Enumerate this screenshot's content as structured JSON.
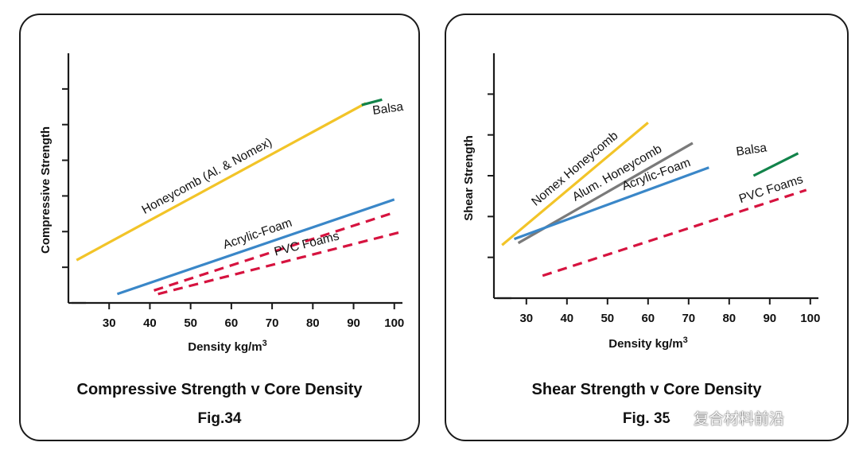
{
  "colors": {
    "honeycomb": "#f2c428",
    "acrylic": "#3a87c8",
    "pvc": "#d6133f",
    "balsa": "#12834a",
    "aluminum": "#7a7a7a",
    "axis": "#1a1a1a"
  },
  "watermark": {
    "text": "复合材料前沿"
  },
  "chart_data": [
    {
      "type": "line",
      "title": "Compressive Strength v Core Density",
      "figure_label": "Fig.34",
      "xlabel": "Density kg/m³",
      "ylabel": "Compressive Strength",
      "xlim": [
        20,
        102
      ],
      "ylim": [
        0,
        7
      ],
      "x_ticks": [
        30,
        40,
        50,
        60,
        70,
        80,
        90,
        100
      ],
      "y_ticks": [
        1,
        2,
        3,
        4,
        5,
        6
      ],
      "grid": false,
      "series": [
        {
          "name": "Honeycomb (Al. & Nomex)",
          "label": "Honeycomb (Al. & Nomex)",
          "color_key": "honeycomb",
          "dash": false,
          "x": [
            22,
            93
          ],
          "y": [
            1.2,
            5.6
          ]
        },
        {
          "name": "Balsa",
          "label": "Balsa",
          "color_key": "balsa",
          "dash": false,
          "x": [
            92,
            97
          ],
          "y": [
            5.55,
            5.7
          ]
        },
        {
          "name": "Acrylic-Foam",
          "label": "Acrylic-Foam",
          "color_key": "acrylic",
          "dash": false,
          "x": [
            32,
            100
          ],
          "y": [
            0.25,
            2.9
          ]
        },
        {
          "name": "PVC Foams (upper)",
          "label": "",
          "color_key": "pvc",
          "dash": true,
          "x": [
            41,
            99
          ],
          "y": [
            0.35,
            2.5
          ]
        },
        {
          "name": "PVC Foams (lower)",
          "label": "PVC Foams",
          "color_key": "pvc",
          "dash": true,
          "x": [
            42,
            102
          ],
          "y": [
            0.25,
            2.0
          ]
        }
      ]
    },
    {
      "type": "line",
      "title": "Shear Strength v Core Density",
      "figure_label": "Fig. 35",
      "xlabel": "Density kg/m³",
      "ylabel": "Shear Strength",
      "xlim": [
        22,
        102
      ],
      "ylim": [
        0,
        6
      ],
      "x_ticks": [
        30,
        40,
        50,
        60,
        70,
        80,
        90,
        100
      ],
      "y_ticks": [
        1,
        2,
        3,
        4,
        5
      ],
      "grid": false,
      "series": [
        {
          "name": "Nomex Honeycomb",
          "label": "Nomex Honeycomb",
          "color_key": "honeycomb",
          "dash": false,
          "x": [
            24,
            60
          ],
          "y": [
            1.3,
            4.3
          ]
        },
        {
          "name": "Alum. Honeycomb",
          "label": "Alum. Honeycomb",
          "color_key": "aluminum",
          "dash": false,
          "x": [
            28,
            71
          ],
          "y": [
            1.35,
            3.8
          ]
        },
        {
          "name": "Acrylic-Foam",
          "label": "Acrylic-Foam",
          "color_key": "acrylic",
          "dash": false,
          "x": [
            27,
            75
          ],
          "y": [
            1.45,
            3.2
          ]
        },
        {
          "name": "Balsa",
          "label": "Balsa",
          "color_key": "balsa",
          "dash": false,
          "x": [
            86,
            97
          ],
          "y": [
            3.0,
            3.55
          ]
        },
        {
          "name": "PVC Foams",
          "label": "PVC Foams",
          "color_key": "pvc",
          "dash": true,
          "x": [
            34,
            99
          ],
          "y": [
            0.55,
            2.65
          ]
        }
      ]
    }
  ]
}
